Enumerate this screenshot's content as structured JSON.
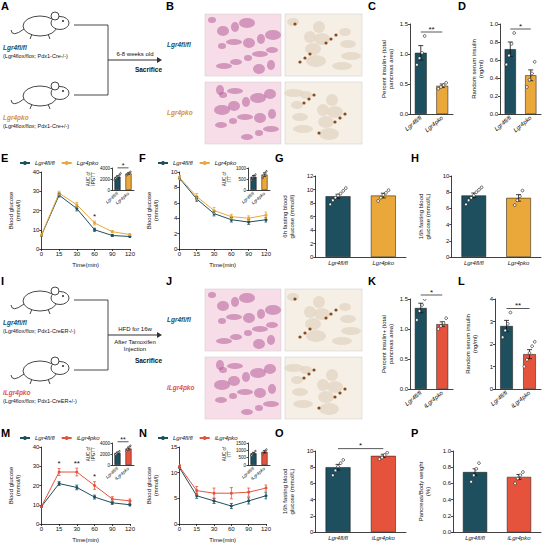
{
  "diagrams": [
    {
      "panel": "A",
      "groups": [
        {
          "name": "Lgr4fl/fl",
          "genotype": "(Lgr4flox/flox; Pdx1-Cre-/-)",
          "color": "#1e4f5e"
        },
        {
          "name": "Lgr4pko",
          "genotype": "(Lgr4flox/flox; Pdx1-Cre+/-)",
          "color": "#d8942a"
        }
      ],
      "above_arrow": "6-8 weeks old",
      "end": "Sacrifice"
    },
    {
      "panel": "B",
      "rows": [
        {
          "name": "Lgr4fl/fl",
          "color": "#1e4f5e"
        },
        {
          "name": "Lgr4pko",
          "color": "#d8942a"
        }
      ]
    },
    {
      "panel": "I",
      "groups": [
        {
          "name": "Lgr4fl/fl",
          "genotype": "(Lgr4flox/flox; Pdx1-CreER-/-)",
          "color": "#1e4f5e"
        },
        {
          "name": "iLgr4pko",
          "genotype": "(Lgr4flox/flox; Pdx1-CreER+/-)",
          "color": "#e5533d"
        }
      ],
      "above_arrow": "HFD for 16w",
      "below_arrow": "After Tamoxifen Injection",
      "end": "Sacrifice"
    },
    {
      "panel": "J",
      "rows": [
        {
          "name": "Lgr4fl/fl",
          "color": "#1e4f5e"
        },
        {
          "name": "iLgr4pko",
          "color": "#e5533d"
        }
      ]
    }
  ],
  "chart_data": [
    {
      "panel": "C",
      "type": "bar",
      "ylabel": "Percent insulin+ (total pancreas area)",
      "categories": [
        "Lgr4fl/fl",
        "Lgr4pko"
      ],
      "colors": [
        "#1e4f5e",
        "#eaa83a"
      ],
      "values": [
        1.02,
        0.47
      ],
      "errors": [
        0.12,
        0.03
      ],
      "points": [
        [
          0.82,
          0.93,
          1.02,
          1.3
        ],
        [
          0.42,
          0.45,
          0.48,
          0.52
        ]
      ],
      "ylim": [
        0,
        1.5
      ],
      "yticks": [
        {
          "value": 0,
          "label": "0.0"
        },
        0.5,
        {
          "value": 1,
          "label": "1.0"
        },
        1.5
      ],
      "significance": "**"
    },
    {
      "panel": "D",
      "type": "bar",
      "ylabel": "Random serum insulin (ng/ml)",
      "categories": [
        "Lgr4fl/fl",
        "Lgr4pko"
      ],
      "colors": [
        "#1e4f5e",
        "#eaa83a"
      ],
      "values": [
        0.72,
        0.43
      ],
      "errors": [
        0.08,
        0.06
      ],
      "points": [
        [
          0.55,
          0.65,
          0.78,
          0.9
        ],
        [
          0.3,
          0.38,
          0.45,
          0.58
        ]
      ],
      "ylim": [
        0,
        1
      ],
      "yticks": [
        {
          "value": 0,
          "label": "0.0"
        },
        0.2,
        0.4,
        0.6,
        0.8,
        {
          "value": 1,
          "label": "1.0"
        }
      ],
      "significance": "*"
    },
    {
      "panel": "E",
      "type": "line",
      "xlabel": "Time(min)",
      "ylabel": "Blood glucose (mmol/l)",
      "categories": [
        "0",
        "15",
        "30",
        "60",
        "90",
        "120"
      ],
      "series": [
        {
          "name": "Lgr4fl/fl",
          "color": "#1e4f5e",
          "values": [
            7,
            28,
            21,
            10,
            7,
            6.5
          ],
          "errors": [
            0.3,
            1,
            1.2,
            0.8,
            0.5,
            0.4
          ]
        },
        {
          "name": "Lgr4pko",
          "color": "#eaa83a",
          "values": [
            7.2,
            29,
            23,
            13.5,
            9,
            7.5
          ],
          "errors": [
            0.3,
            1,
            1.2,
            1,
            0.6,
            0.5
          ]
        }
      ],
      "ylim": [
        0,
        40
      ],
      "yticks": [
        0,
        10,
        20,
        30,
        40
      ],
      "legend": "top-left",
      "marker": "circle",
      "annotations": [
        {
          "x": "60",
          "text": "*"
        }
      ],
      "inset": {
        "type": "bar",
        "ylabel": "AUC of IPGTT",
        "categories": [
          "Lgr4fl/fl",
          "Lgr4pko"
        ],
        "colors": [
          "#1e4f5e",
          "#eaa83a"
        ],
        "values": [
          2400,
          3000
        ],
        "errors": [
          180,
          130
        ],
        "points": [
          [
            1800,
            2100,
            2300,
            2500,
            2700,
            3000
          ],
          [
            2700,
            2900,
            3100,
            3300
          ]
        ],
        "ylim": [
          0,
          4000
        ],
        "yticks": [
          0,
          2000,
          4000
        ],
        "significance": "*"
      }
    },
    {
      "panel": "F",
      "type": "line",
      "xlabel": "Time(min)",
      "ylabel": "Blood glucose (mmol/l)",
      "categories": [
        "0",
        "15",
        "30",
        "60",
        "90",
        "120"
      ],
      "series": [
        {
          "name": "Lgr4fl/fl",
          "color": "#1e4f5e",
          "values": [
            9.2,
            6.5,
            4.6,
            3.8,
            3.5,
            3.8
          ],
          "errors": [
            0.3,
            0.3,
            0.3,
            0.3,
            0.3,
            0.3
          ]
        },
        {
          "name": "Lgr4pko",
          "color": "#eaa83a",
          "values": [
            9.3,
            6.8,
            5,
            4.2,
            4,
            4.4
          ],
          "errors": [
            0.3,
            0.4,
            0.4,
            0.3,
            0.3,
            0.4
          ]
        }
      ],
      "ylim": [
        0,
        10
      ],
      "yticks": [
        0,
        2,
        4,
        6,
        8,
        10
      ],
      "legend": "top-left",
      "marker": "circle",
      "inset": {
        "type": "bar",
        "ylabel": "AUC of ITT",
        "categories": [
          "Lgr4fl/fl",
          "Lgr4pko"
        ],
        "colors": [
          "#1e4f5e",
          "#eaa83a"
        ],
        "values": [
          600,
          700
        ],
        "errors": [
          60,
          80
        ],
        "points": [
          [
            450,
            550,
            620,
            700
          ],
          [
            550,
            650,
            750,
            850
          ]
        ],
        "ylim": [
          0,
          1000
        ],
        "yticks": [
          0,
          500,
          1000
        ]
      }
    },
    {
      "panel": "G",
      "type": "bar",
      "ylabel": "6h fasting blood glucose (mmol/l)",
      "categories": [
        "Lgr4fl/fl",
        "Lgr4pko"
      ],
      "colors": [
        "#1e4f5e",
        "#eaa83a"
      ],
      "values": [
        9,
        9.1
      ],
      "errors": [
        0.3,
        0.35
      ],
      "points": [
        [
          7.8,
          8.4,
          8.8,
          9.1,
          9.4,
          9.8,
          10.2
        ],
        [
          8.3,
          8.8,
          9.2,
          9.5,
          9.9
        ]
      ],
      "ylim": [
        0,
        12
      ],
      "yticks": [
        0,
        2,
        4,
        6,
        8,
        10,
        12
      ]
    },
    {
      "panel": "H",
      "type": "bar",
      "ylabel": "16h fasting blood glucose (mmol/L)",
      "categories": [
        "Lgr4fl/fl",
        "Lgr4pko"
      ],
      "colors": [
        "#1e4f5e",
        "#eaa83a"
      ],
      "values": [
        7.6,
        7.3
      ],
      "errors": [
        0.3,
        0.4
      ],
      "points": [
        [
          6.5,
          7,
          7.3,
          7.6,
          8,
          8.3,
          8.6
        ],
        [
          6.4,
          7,
          7.5,
          8.2
        ]
      ],
      "ylim": [
        0,
        10
      ],
      "yticks": [
        0,
        2,
        4,
        6,
        8,
        10
      ]
    },
    {
      "panel": "K",
      "type": "bar",
      "ylabel": "Percent insulin+ (total pancreas area)",
      "categories": [
        "Lgr4fl/fl",
        "iLgr4pko"
      ],
      "colors": [
        "#1e4f5e",
        "#e5533d"
      ],
      "values": [
        1.35,
        1.08
      ],
      "errors": [
        0.08,
        0.04
      ],
      "points": [
        [
          1.15,
          1.3,
          1.4,
          1.5
        ],
        [
          1,
          1.05,
          1.1,
          1.18
        ]
      ],
      "ylim": [
        0,
        1.5
      ],
      "yticks": [
        {
          "value": 0,
          "label": "0.0"
        },
        0.5,
        {
          "value": 1,
          "label": "1.0"
        },
        1.5
      ],
      "significance": "*"
    },
    {
      "panel": "L",
      "type": "bar",
      "ylabel": "Random serum insulin (ng/ml)",
      "categories": [
        "Lgr4fl/fl",
        "iLgr4pko"
      ],
      "colors": [
        "#1e4f5e",
        "#e5533d"
      ],
      "values": [
        2.8,
        1.55
      ],
      "errors": [
        0.25,
        0.2
      ],
      "points": [
        [
          2.3,
          2.6,
          2.9,
          3.4
        ],
        [
          1,
          1.3,
          1.6,
          1.9,
          2.1
        ]
      ],
      "ylim": [
        0,
        4
      ],
      "yticks": [
        0,
        1,
        2,
        3,
        4
      ],
      "significance": "**"
    },
    {
      "panel": "M",
      "type": "line",
      "xlabel": "Time(min)",
      "ylabel": "Blood glucose (mmol/l)",
      "categories": [
        "0",
        "15",
        "30",
        "60",
        "90",
        "120"
      ],
      "series": [
        {
          "name": "Lgr4fl/fl",
          "color": "#1e4f5e",
          "values": [
            9,
            21,
            19,
            14,
            11,
            10
          ],
          "errors": [
            0.4,
            1,
            1.2,
            1,
            0.8,
            0.6
          ]
        },
        {
          "name": "iLgr4pko",
          "color": "#e5533d",
          "values": [
            9,
            27,
            27,
            20,
            13,
            12
          ],
          "errors": [
            0.4,
            1.8,
            2,
            2,
            1.2,
            1
          ]
        }
      ],
      "ylim": [
        0,
        40
      ],
      "yticks": [
        0,
        10,
        20,
        30,
        40
      ],
      "legend": "top-left",
      "marker": "circle",
      "annotations": [
        {
          "x": "15",
          "text": "*"
        },
        {
          "x": "30",
          "text": "**"
        },
        {
          "x": "60",
          "text": "*"
        }
      ],
      "inset": {
        "type": "bar",
        "ylabel": "AUC of IPGTT",
        "categories": [
          "Lgr4fl/fl",
          "iLgr4pko"
        ],
        "colors": [
          "#1e4f5e",
          "#e5533d"
        ],
        "values": [
          2200,
          3000
        ],
        "errors": [
          150,
          250
        ],
        "points": [
          [
            1900,
            2100,
            2300,
            2500
          ],
          [
            2500,
            2800,
            3200,
            3500
          ]
        ],
        "ylim": [
          0,
          4000
        ],
        "yticks": [
          0,
          2000,
          4000
        ],
        "significance": "**"
      }
    },
    {
      "panel": "N",
      "type": "line",
      "xlabel": "Time(min)",
      "ylabel": "Blood glucose (mmol/l)",
      "categories": [
        "0",
        "15",
        "30",
        "60",
        "90",
        "120"
      ],
      "series": [
        {
          "name": "Lgr4fl/fl",
          "color": "#1e4f5e",
          "values": [
            11,
            5.5,
            4.5,
            3.5,
            4.5,
            5.5
          ],
          "errors": [
            0.4,
            0.5,
            0.5,
            0.5,
            0.6,
            0.6
          ]
        },
        {
          "name": "iLgr4pko",
          "color": "#e5533d",
          "values": [
            11.2,
            6.5,
            6,
            6,
            6.2,
            7
          ],
          "errors": [
            0.4,
            0.8,
            1,
            1.1,
            0.8,
            0.6
          ]
        }
      ],
      "ylim": [
        0,
        15
      ],
      "yticks": [
        0,
        5,
        10,
        15
      ],
      "legend": "top-left",
      "marker": "circle",
      "inset": {
        "type": "bar",
        "ylabel": "AUC of ITT",
        "categories": [
          "Lgr4fl/fl",
          "iLgr4pko"
        ],
        "colors": [
          "#1e4f5e",
          "#e5533d"
        ],
        "values": [
          800,
          900
        ],
        "errors": [
          60,
          80
        ],
        "points": [
          [
            650,
            750,
            850,
            950
          ],
          [
            750,
            850,
            950,
            1050
          ]
        ],
        "ylim": [
          0,
          1500
        ],
        "yticks": [
          0,
          500,
          1000,
          1500
        ]
      }
    },
    {
      "panel": "O",
      "type": "bar",
      "ylabel": "16h fasting blood glucose (mmol/L)",
      "categories": [
        "Lgr4fl/fl",
        "iLgr4pko"
      ],
      "colors": [
        "#1e4f5e",
        "#e5533d"
      ],
      "values": [
        8,
        9.4
      ],
      "errors": [
        0.35,
        0.2
      ],
      "points": [
        [
          7,
          7.6,
          8.1,
          8.5,
          8.9
        ],
        [
          9,
          9.2,
          9.5,
          9.8
        ]
      ],
      "ylim": [
        0,
        10
      ],
      "yticks": [
        0,
        2,
        4,
        6,
        8,
        10
      ],
      "significance": "*"
    },
    {
      "panel": "P",
      "type": "bar",
      "ylabel": "Pancreas/Body weight (%)",
      "categories": [
        "Lgr4fl/fl",
        "iLgr4pko"
      ],
      "colors": [
        "#1e4f5e",
        "#e5533d"
      ],
      "values": [
        0.74,
        0.68
      ],
      "errors": [
        0.04,
        0.03
      ],
      "points": [
        [
          0.62,
          0.7,
          0.78,
          0.85
        ],
        [
          0.6,
          0.66,
          0.7,
          0.74
        ]
      ],
      "ylim": [
        0,
        1
      ],
      "yticks": [
        {
          "value": 0,
          "label": "0.0"
        },
        0.2,
        0.4,
        0.6,
        0.8,
        {
          "value": 1,
          "label": "1.0"
        }
      ]
    }
  ]
}
